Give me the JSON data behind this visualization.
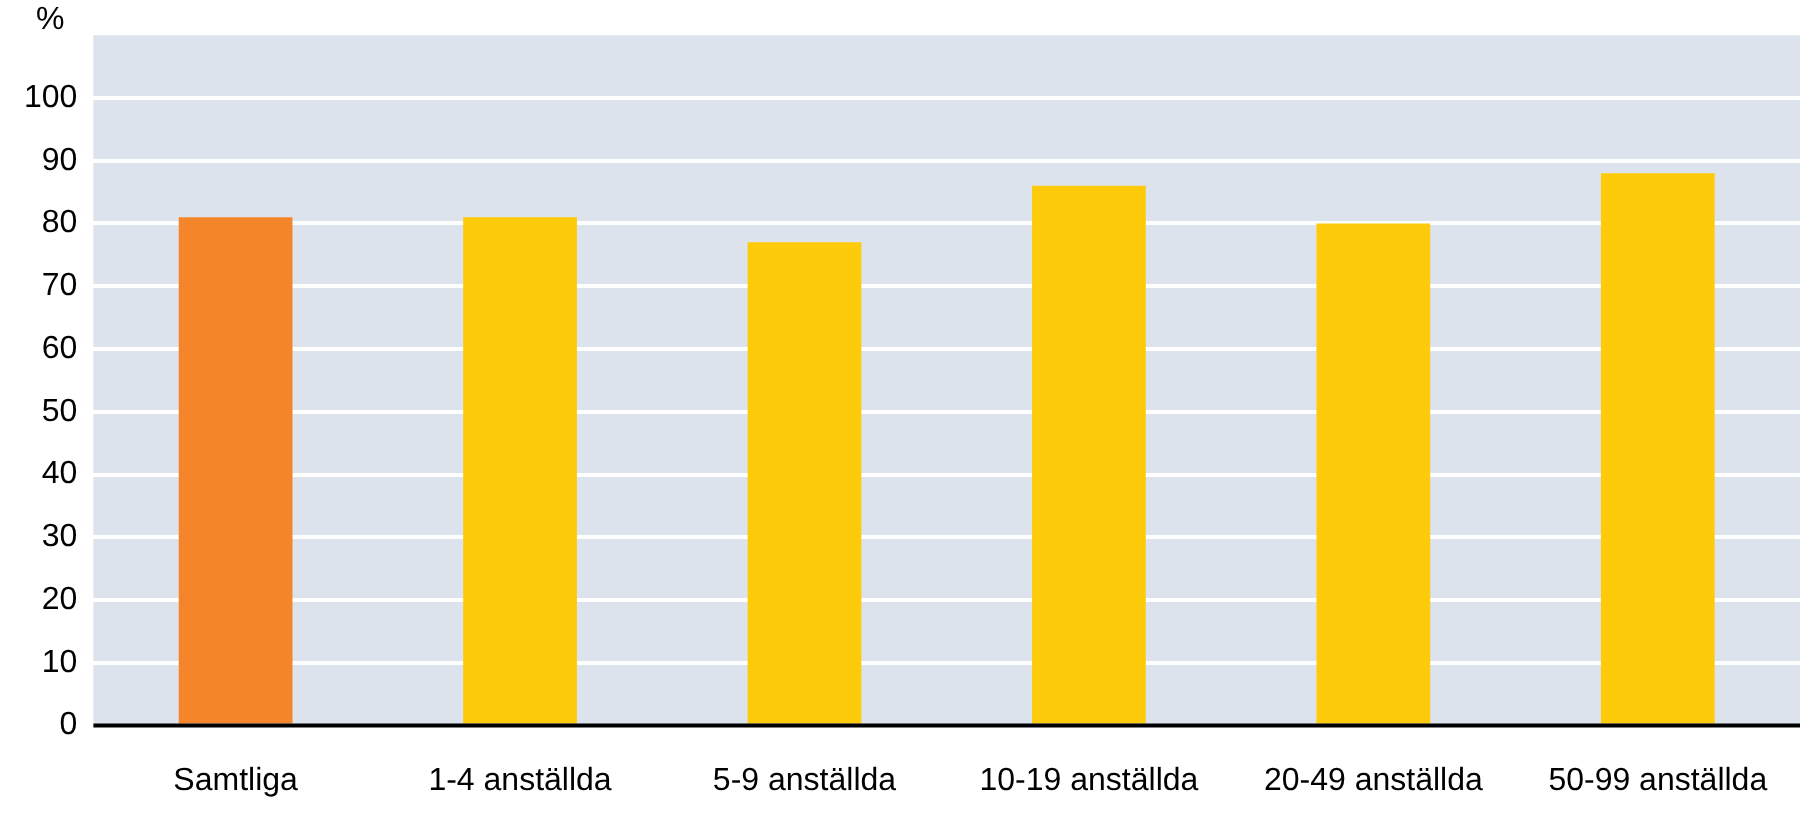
{
  "chart_data": {
    "type": "bar",
    "ylabel": "%",
    "categories": [
      "Samtliga",
      "1-4 anställda",
      "5-9 anställda",
      "10-19 anställda",
      "20-49 anställda",
      "50-99 anställda"
    ],
    "values": [
      81,
      81,
      77,
      86,
      80,
      88
    ],
    "colors": [
      "#f5852a",
      "#fecb0a",
      "#fecb0a",
      "#fecb0a",
      "#fecb0a",
      "#fecb0a"
    ],
    "ylim": [
      0,
      110
    ],
    "yticks": [
      0,
      10,
      20,
      30,
      40,
      50,
      60,
      70,
      80,
      90,
      100
    ],
    "grid": "y"
  }
}
